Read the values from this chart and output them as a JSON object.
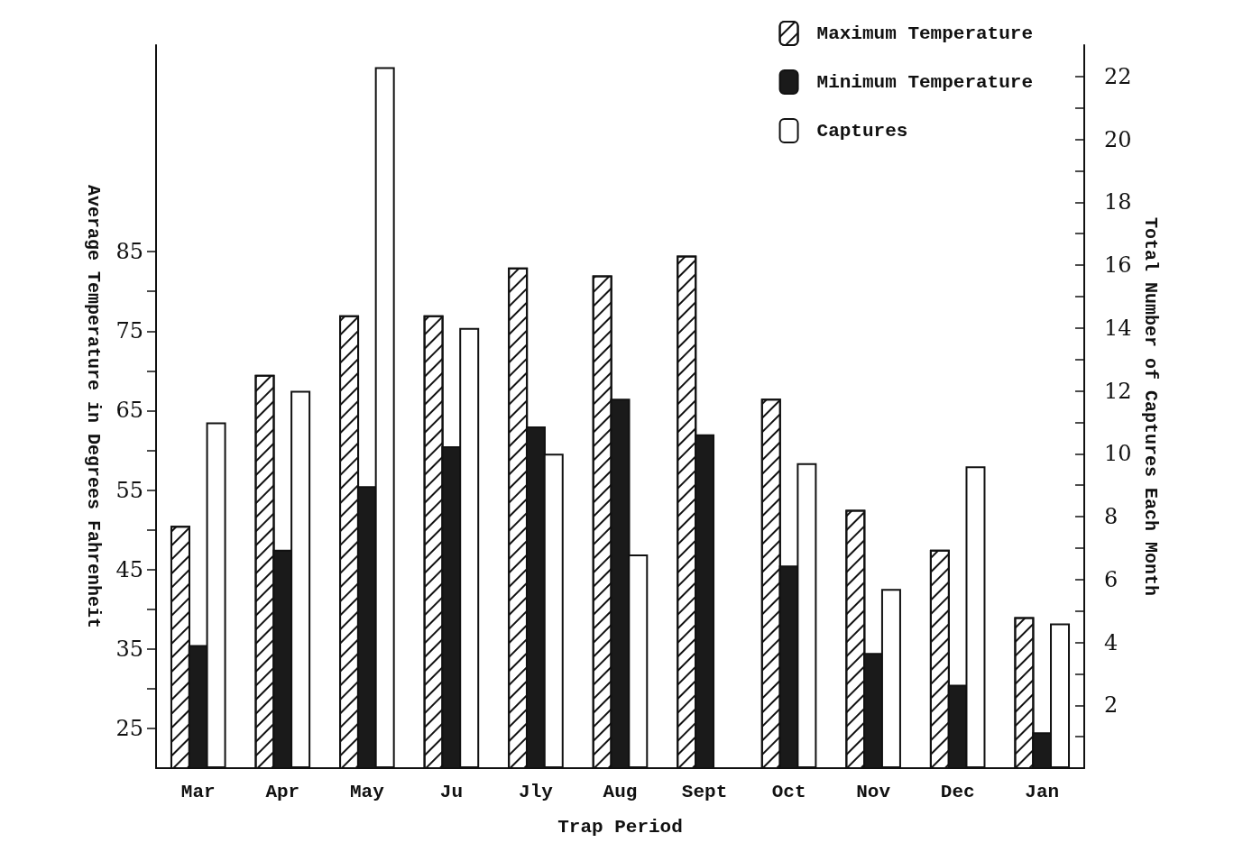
{
  "chart_data": {
    "type": "bar",
    "xlabel": "Trap Period",
    "ylabel": "Average Temperature in Degrees Fahrenheit",
    "y2label": "Total Number of Captures Each Month",
    "categories": [
      "Mar",
      "Apr",
      "May",
      "Ju",
      "Jly",
      "Aug",
      "Sept",
      "Oct",
      "Nov",
      "Dec",
      "Jan"
    ],
    "series": [
      {
        "name": "Maximum Temperature",
        "color": "#ffffff",
        "values": [
          50.5,
          69.5,
          77,
          77,
          83,
          82,
          84.5,
          66.5,
          52.5,
          47.5,
          39
        ]
      },
      {
        "name": "Minimum Temperature",
        "color": "#1a1a1a",
        "values": [
          35.5,
          47.5,
          55.5,
          60.5,
          63,
          66.5,
          62,
          45.5,
          34.5,
          30.5,
          24.5
        ]
      },
      {
        "name": "Captures",
        "color": "#ffffff",
        "axis": "y2",
        "values": [
          11,
          12,
          22.3,
          14,
          10,
          6.8,
          null,
          9.7,
          5.7,
          9.6,
          4.6
        ]
      }
    ],
    "ylim": [
      20,
      111
    ],
    "yticks": [
      25,
      {
        "value": 30,
        "label": null
      },
      35,
      {
        "value": 40,
        "label": null
      },
      45,
      {
        "value": 50,
        "label": null
      },
      55,
      {
        "value": 60,
        "label": null
      },
      65,
      {
        "value": 70,
        "label": null
      },
      75,
      {
        "value": 80,
        "label": null
      },
      85
    ],
    "y2lim": [
      0,
      23
    ],
    "y2ticks": [
      {
        "value": 1,
        "label": null
      },
      2,
      {
        "value": 3,
        "label": null
      },
      4,
      {
        "value": 5,
        "label": null
      },
      6,
      {
        "value": 7,
        "label": null
      },
      8,
      {
        "value": 9,
        "label": null
      },
      10,
      {
        "value": 11,
        "label": null
      },
      12,
      {
        "value": 13,
        "label": null
      },
      14,
      {
        "value": 15,
        "label": null
      },
      16,
      {
        "value": 17,
        "label": null
      },
      18,
      {
        "value": 19,
        "label": null
      },
      20,
      {
        "value": 21,
        "label": null
      },
      22
    ],
    "grid": false,
    "legend": "top right"
  }
}
